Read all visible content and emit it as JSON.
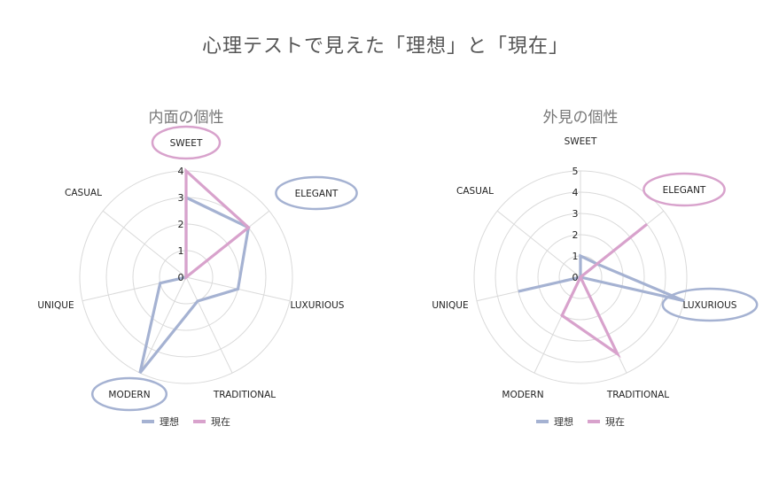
{
  "page": {
    "title": "心理テストで見えた「理想」と「現在」"
  },
  "colors": {
    "ideal": "#a5b2d2",
    "current": "#d8a2cc",
    "grid": "#dadada"
  },
  "chart_data": [
    {
      "type": "radar",
      "title": "内面の個性",
      "axes": [
        "SWEET",
        "ELEGANT",
        "LUXURIOUS",
        "TRADITIONAL",
        "MODERN",
        "UNIQUE",
        "CASUAL"
      ],
      "ticks": [
        0,
        1,
        2,
        3,
        4
      ],
      "rmax": 4,
      "series": [
        {
          "name": "理想",
          "values": [
            3,
            3,
            2,
            1,
            4,
            1,
            0
          ]
        },
        {
          "name": "現在",
          "values": [
            4,
            3,
            0,
            0,
            0,
            0,
            0
          ]
        }
      ],
      "highlights": [
        {
          "axis": "SWEET",
          "color": "current"
        },
        {
          "axis": "ELEGANT",
          "color": "ideal"
        },
        {
          "axis": "MODERN",
          "color": "ideal"
        }
      ],
      "legend": [
        "理想",
        "現在"
      ]
    },
    {
      "type": "radar",
      "title": "外見の個性",
      "axes": [
        "SWEET",
        "ELEGANT",
        "LUXURIOUS",
        "TRADITIONAL",
        "MODERN",
        "UNIQUE",
        "CASUAL"
      ],
      "ticks": [
        0,
        1,
        2,
        3,
        4,
        5
      ],
      "rmax": 5,
      "series": [
        {
          "name": "理想",
          "values": [
            1,
            1,
            5,
            0,
            0,
            3,
            0
          ]
        },
        {
          "name": "現在",
          "values": [
            0,
            4,
            0,
            4,
            2,
            0,
            0
          ]
        }
      ],
      "highlights": [
        {
          "axis": "ELEGANT",
          "color": "current"
        },
        {
          "axis": "LUXURIOUS",
          "color": "ideal"
        }
      ],
      "legend": [
        "理想",
        "現在"
      ]
    }
  ]
}
